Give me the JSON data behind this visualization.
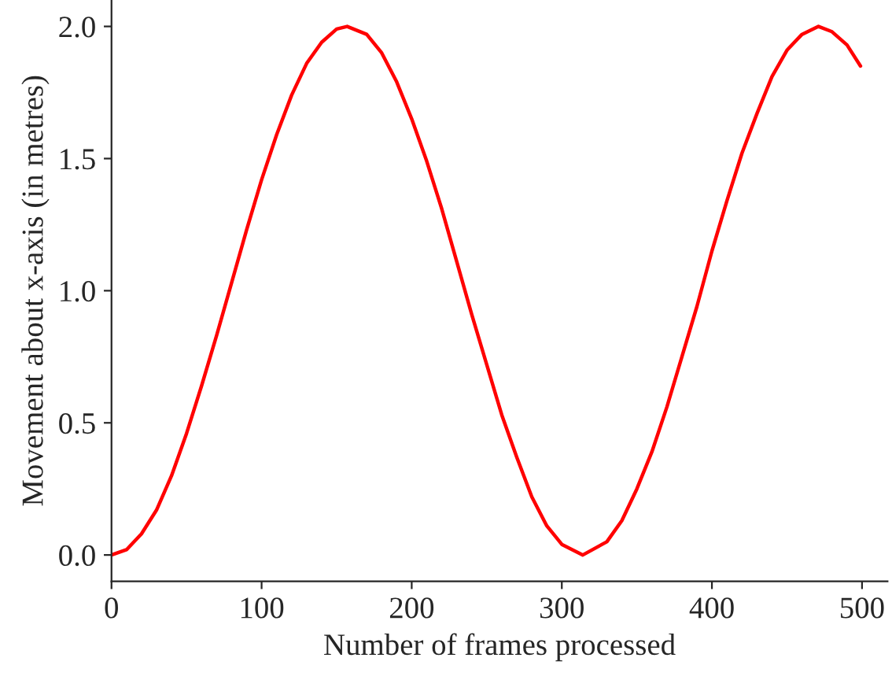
{
  "chart_data": {
    "type": "line",
    "xlabel": "Number of frames processed",
    "ylabel": "Movement about x-axis (in metres)",
    "x": [
      0,
      10,
      20,
      30,
      40,
      50,
      60,
      70,
      80,
      90,
      100,
      110,
      120,
      130,
      140,
      150,
      157,
      170,
      180,
      190,
      200,
      210,
      220,
      230,
      240,
      250,
      260,
      270,
      280,
      290,
      300,
      314,
      330,
      340,
      350,
      360,
      370,
      380,
      390,
      400,
      410,
      420,
      430,
      440,
      450,
      460,
      471,
      480,
      490,
      499
    ],
    "series": [
      {
        "color": "#ff0000",
        "values": [
          0,
          0.02,
          0.08,
          0.17,
          0.3,
          0.46,
          0.64,
          0.83,
          1.03,
          1.23,
          1.42,
          1.59,
          1.74,
          1.86,
          1.94,
          1.99,
          2.0,
          1.97,
          1.9,
          1.79,
          1.65,
          1.49,
          1.31,
          1.11,
          0.91,
          0.72,
          0.53,
          0.37,
          0.22,
          0.11,
          0.04,
          0,
          0.05,
          0.13,
          0.25,
          0.39,
          0.56,
          0.75,
          0.94,
          1.15,
          1.34,
          1.52,
          1.67,
          1.81,
          1.91,
          1.97,
          2.0,
          1.98,
          1.93,
          1.85
        ]
      }
    ],
    "xlim": [
      0,
      517
    ],
    "ylim": [
      -0.1,
      2.1
    ],
    "xticks": [
      0,
      100,
      200,
      300,
      400,
      500
    ],
    "yticks": [
      {
        "value": 0,
        "label": "0.0"
      },
      {
        "value": 0.5,
        "label": "0.5"
      },
      {
        "value": 1,
        "label": "1.0"
      },
      {
        "value": 1.5,
        "label": "1.5"
      },
      {
        "value": 2,
        "label": "2.0"
      }
    ],
    "grid": false,
    "legend": false,
    "line_style": "solid",
    "marker": "none"
  }
}
